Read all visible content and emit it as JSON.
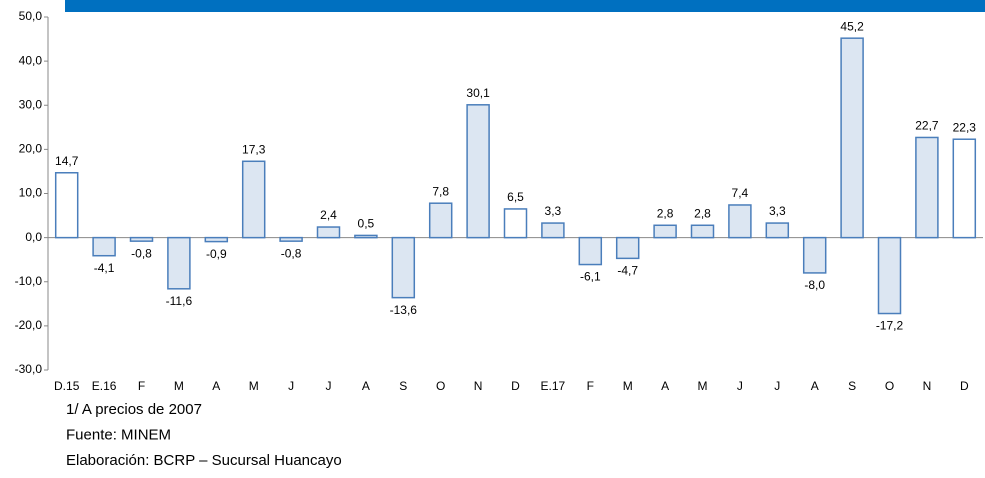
{
  "chart_data": {
    "type": "bar",
    "categories": [
      "D.15",
      "E.16",
      "F",
      "M",
      "A",
      "M",
      "J",
      "J",
      "A",
      "S",
      "O",
      "N",
      "D",
      "E.17",
      "F",
      "M",
      "A",
      "M",
      "J",
      "J",
      "A",
      "S",
      "O",
      "N",
      "D"
    ],
    "values": [
      14.7,
      -4.1,
      -0.8,
      -11.6,
      -0.9,
      17.3,
      -0.8,
      2.4,
      0.5,
      -13.6,
      7.8,
      30.1,
      6.5,
      3.3,
      -6.1,
      -4.7,
      2.8,
      2.8,
      7.4,
      3.3,
      -8.0,
      45.2,
      -17.2,
      22.7,
      22.3
    ],
    "value_labels": [
      "14,7",
      "-4,1",
      "-0,8",
      "-11,6",
      "-0,9",
      "17,3",
      "-0,8",
      "2,4",
      "0,5",
      "-13,6",
      "7,8",
      "30,1",
      "6,5",
      "3,3",
      "-6,1",
      "-4,7",
      "2,8",
      "2,8",
      "7,4",
      "3,3",
      "-8,0",
      "45,2",
      "-17,2",
      "22,7",
      "22,3"
    ],
    "colors": [
      "#ffffff",
      "#dce6f2",
      "#dce6f2",
      "#dce6f2",
      "#dce6f2",
      "#dce6f2",
      "#dce6f2",
      "#dce6f2",
      "#dce6f2",
      "#dce6f2",
      "#dce6f2",
      "#dce6f2",
      "#ffffff",
      "#dce6f2",
      "#dce6f2",
      "#dce6f2",
      "#dce6f2",
      "#dce6f2",
      "#dce6f2",
      "#dce6f2",
      "#dce6f2",
      "#dce6f2",
      "#dce6f2",
      "#dce6f2",
      "#ffffff"
    ],
    "edge_color": "#4a7ebb",
    "ylim": [
      -30,
      50
    ],
    "yticks": [
      {
        "value": -30,
        "label": "-30,0"
      },
      {
        "value": -20,
        "label": "-20,0"
      },
      {
        "value": -10,
        "label": "-10,0"
      },
      {
        "value": 0,
        "label": "0,0"
      },
      {
        "value": 10,
        "label": "10,0"
      },
      {
        "value": 20,
        "label": "20,0"
      },
      {
        "value": 30,
        "label": "30,0"
      },
      {
        "value": 40,
        "label": "40,0"
      },
      {
        "value": 50,
        "label": "50,0"
      }
    ],
    "notes": [
      "1/ A precios de 2007",
      "Fuente: MINEM",
      "Elaboración: BCRP – Sucursal Huancayo"
    ]
  }
}
